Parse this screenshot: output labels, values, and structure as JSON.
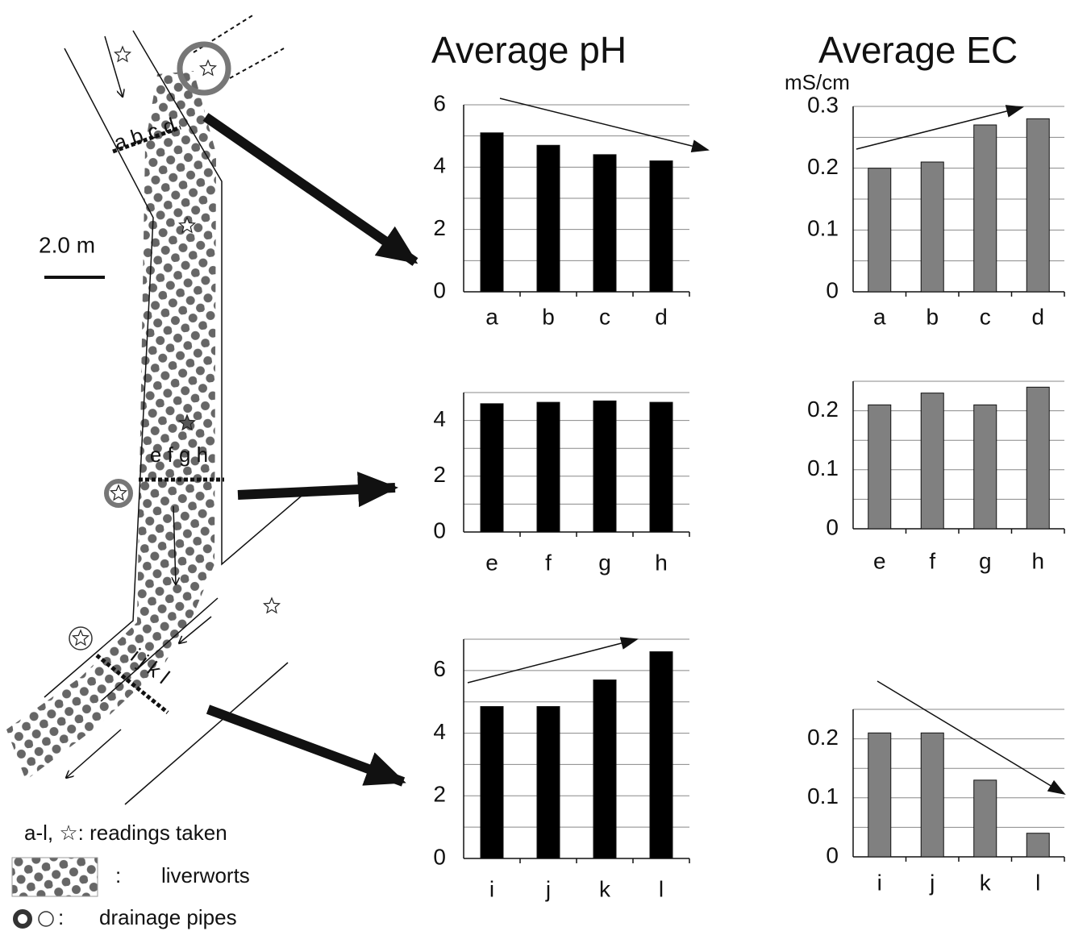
{
  "headers": {
    "ph": "Average pH",
    "ec": "Average EC",
    "ec_unit": "mS/cm"
  },
  "diagram": {
    "scale": "2.0 m",
    "section_1": "a b c d",
    "section_2": "e f g h",
    "section_3": "i j k l",
    "legend": {
      "readings": "a-l, ☆:  readings taken",
      "liverworts_sep": ":",
      "liverworts": "liverworts",
      "pipes_sep": ":",
      "pipes": "drainage pipes"
    }
  },
  "chart_data": [
    {
      "type": "bar",
      "categories": [
        "a",
        "b",
        "c",
        "d"
      ],
      "values": [
        5.1,
        4.7,
        4.4,
        4.2
      ],
      "color": "#000000",
      "ylim": [
        0,
        6
      ],
      "yticks": [
        0,
        2,
        4,
        6
      ],
      "minor_yticks": [
        1,
        3,
        5
      ],
      "grid": true
    },
    {
      "type": "bar",
      "categories": [
        "a",
        "b",
        "c",
        "d"
      ],
      "values": [
        0.2,
        0.21,
        0.27,
        0.28
      ],
      "color": "#808080",
      "ylim": [
        0,
        0.3
      ],
      "yticks": [
        0,
        0.1,
        0.2,
        0.3
      ],
      "minor_yticks": [
        0.05,
        0.15,
        0.25
      ],
      "grid": true
    },
    {
      "type": "bar",
      "categories": [
        "e",
        "f",
        "g",
        "h"
      ],
      "values": [
        4.6,
        4.65,
        4.7,
        4.65
      ],
      "color": "#000000",
      "ylim": [
        0,
        5
      ],
      "yticks": [
        0,
        2,
        4
      ],
      "minor_yticks": [
        1,
        3,
        5
      ],
      "grid": true
    },
    {
      "type": "bar",
      "categories": [
        "e",
        "f",
        "g",
        "h"
      ],
      "values": [
        0.21,
        0.23,
        0.21,
        0.24
      ],
      "color": "#808080",
      "ylim": [
        0,
        0.25
      ],
      "yticks": [
        0,
        0.1,
        0.2
      ],
      "minor_yticks": [
        0.05,
        0.15,
        0.25
      ],
      "grid": true
    },
    {
      "type": "bar",
      "categories": [
        "i",
        "j",
        "k",
        "l"
      ],
      "values": [
        4.85,
        4.85,
        5.7,
        6.6
      ],
      "color": "#000000",
      "ylim": [
        0,
        7
      ],
      "yticks": [
        0,
        2,
        4,
        6
      ],
      "minor_yticks": [
        1,
        3,
        5,
        7
      ],
      "grid": true
    },
    {
      "type": "bar",
      "categories": [
        "i",
        "j",
        "k",
        "l"
      ],
      "values": [
        0.21,
        0.21,
        0.13,
        0.04
      ],
      "color": "#808080",
      "ylim": [
        0,
        0.25
      ],
      "yticks": [
        0,
        0.1,
        0.2
      ],
      "minor_yticks": [
        0.05,
        0.15,
        0.25
      ],
      "grid": true
    }
  ]
}
